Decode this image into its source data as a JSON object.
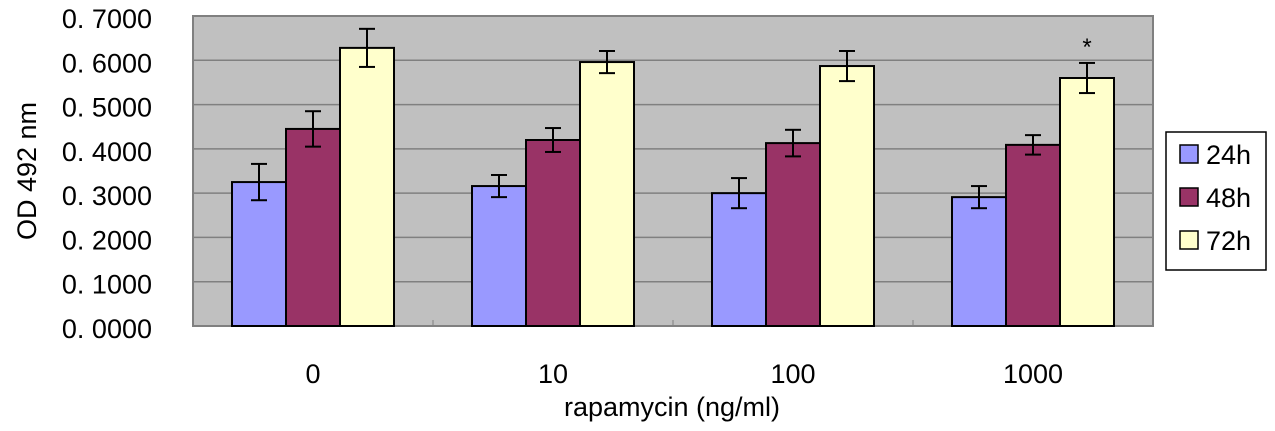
{
  "chart_data": {
    "type": "bar",
    "title": "",
    "xlabel": "rapamycin (ng/ml)",
    "ylabel": "OD 492 nm",
    "ylim": [
      0,
      0.7
    ],
    "yticks": [
      "0. 0000",
      "0. 1000",
      "0. 2000",
      "0. 3000",
      "0. 4000",
      "0. 5000",
      "0. 6000",
      "0. 7000"
    ],
    "grid": true,
    "legend_position": "right",
    "categories": [
      "0",
      "10",
      "100",
      "1000"
    ],
    "series": [
      {
        "name": "24h",
        "color": "#9999FF",
        "values": [
          0.325,
          0.316,
          0.3,
          0.291
        ],
        "errors": [
          0.041,
          0.025,
          0.034,
          0.025
        ]
      },
      {
        "name": "48h",
        "color": "#993366",
        "values": [
          0.445,
          0.42,
          0.413,
          0.409
        ],
        "errors": [
          0.04,
          0.027,
          0.03,
          0.022
        ]
      },
      {
        "name": "72h",
        "color": "#FFFFCC",
        "values": [
          0.628,
          0.596,
          0.587,
          0.56
        ],
        "errors": [
          0.043,
          0.025,
          0.034,
          0.034
        ]
      }
    ],
    "annotations": [
      {
        "category": "1000",
        "series": "72h",
        "text": "*"
      }
    ]
  }
}
